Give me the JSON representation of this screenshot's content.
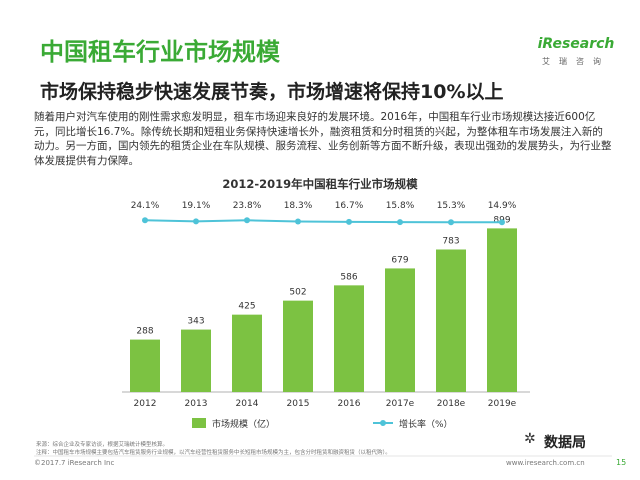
{
  "header": {
    "title": "中国租车行业市场规模",
    "logo": "iResearch",
    "logo_cn": "艾瑞咨询"
  },
  "subtitle": "市场保持稳步快速发展节奏，市场增速将保持10%以上",
  "paragraph": "随着用户对汽车使用的刚性需求愈发明显，租车市场迎来良好的发展环境。2016年，中国租车行业市场规模达接近600亿元，同比增长16.7%。除传统长期和短租业务保持快速增长外，融资租赁和分时租赁的兴起，为整体租车市场发展注入新的动力。另一方面，国内领先的租赁企业在车队规模、服务流程、业务创新等方面不断升级，表现出强劲的发展势头，为行业整体发展提供有力保障。",
  "colors": {
    "accent": "#3aaa35",
    "bar": "#7cc242",
    "line": "#4ec3d8"
  },
  "chart_data": {
    "type": "bar",
    "title": "2012-2019年中国租车行业市场规模",
    "categories": [
      "2012",
      "2013",
      "2014",
      "2015",
      "2016",
      "2017e",
      "2018e",
      "2019e"
    ],
    "series": [
      {
        "name": "市场规模（亿）",
        "type": "bar",
        "values": [
          288,
          343,
          425,
          502,
          586,
          679,
          783,
          899
        ]
      },
      {
        "name": "增长率（%）",
        "type": "line",
        "values": [
          24.1,
          19.1,
          23.8,
          18.3,
          16.7,
          15.8,
          15.3,
          14.9
        ],
        "labels": [
          "24.1%",
          "19.1%",
          "23.8%",
          "18.3%",
          "16.7%",
          "15.8%",
          "15.3%",
          "14.9%"
        ]
      }
    ],
    "ylim": [
      0,
      1000
    ],
    "legend": [
      "市场规模（亿）",
      "增长率（%）"
    ],
    "legend_position": "bottom",
    "grid": false,
    "xlabel": "",
    "ylabel": ""
  },
  "notes": {
    "source": "来源：综合企业及专家访谈，根据艾瑞统计模型核算。",
    "definition": "注释：中国租车市场规模主要包括汽车租赁服务行业规模，以汽车经营性租赁服务中长短租市场规模为主，包含分时租赁和融资租赁（以租代购）。"
  },
  "footer": {
    "copyright": "©2017.7 iResearch Inc",
    "website": "www.iresearch.com.cn",
    "page": "15",
    "watermark": "数据局"
  }
}
